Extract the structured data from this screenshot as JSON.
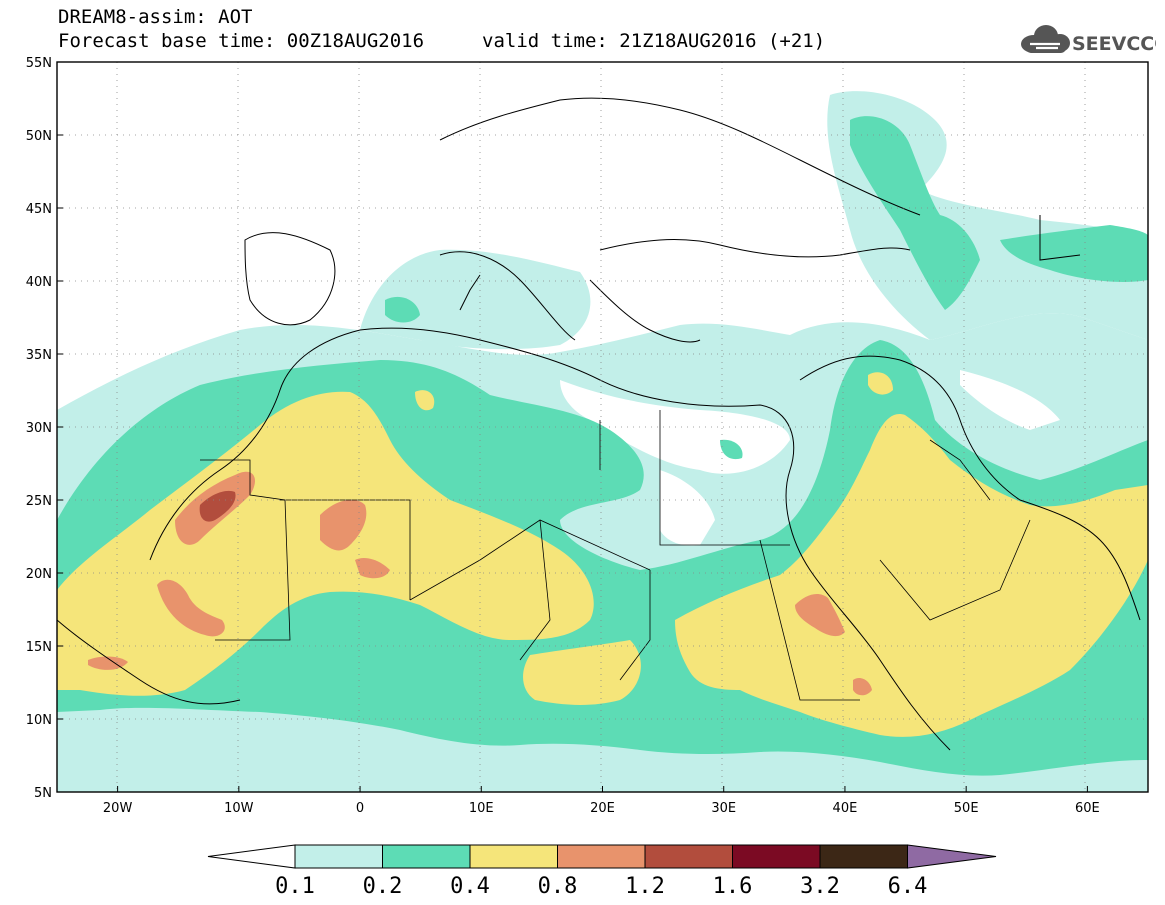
{
  "header": {
    "title": "DREAM8-assim: AOT",
    "forecast_base": "Forecast base time: 00Z18AUG2016",
    "valid_time": "valid time: 21Z18AUG2016 (+21)"
  },
  "logo": {
    "text": "SEEVCCC",
    "icon": "cloud-icon",
    "color": "#555555"
  },
  "map": {
    "lon_range": [
      -25,
      65
    ],
    "lat_range": [
      5,
      55
    ],
    "lat_ticks": [
      "55N",
      "50N",
      "45N",
      "40N",
      "35N",
      "30N",
      "25N",
      "20N",
      "15N",
      "10N",
      "5N"
    ],
    "lon_ticks": [
      "20W",
      "10W",
      "0",
      "10E",
      "20E",
      "30E",
      "40E",
      "50E",
      "60E"
    ]
  },
  "colorbar": {
    "labels": [
      "0.1",
      "0.2",
      "0.4",
      "0.8",
      "1.2",
      "1.6",
      "3.2",
      "6.4"
    ],
    "colors": [
      "#ffffff",
      "#c2efe9",
      "#5ddcb5",
      "#f5e57a",
      "#e8936c",
      "#b24d3d",
      "#7b0a23",
      "#3c2716",
      "#8f6aa3"
    ]
  }
}
